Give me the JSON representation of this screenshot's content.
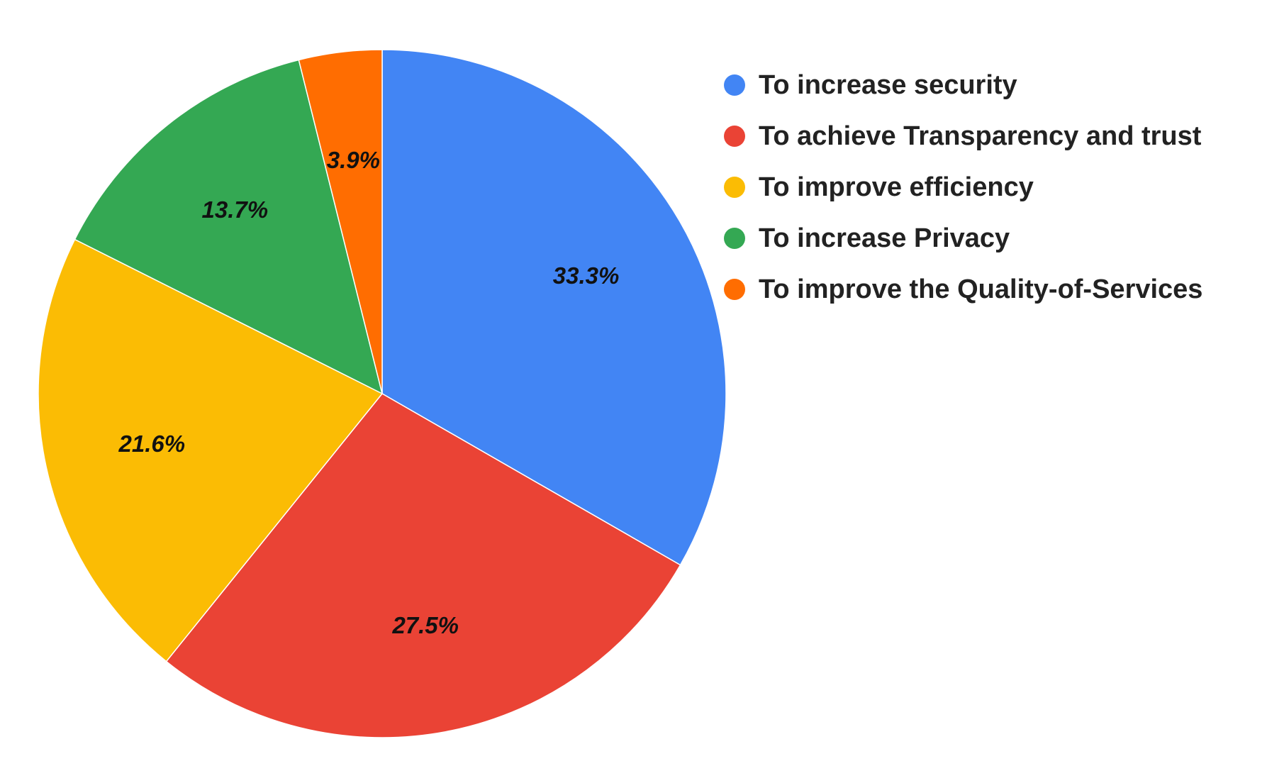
{
  "chart_data": {
    "type": "pie",
    "title": "",
    "categories": [
      "To increase security",
      "To achieve Transparency and trust",
      "To improve efficiency",
      "To increase Privacy",
      "To improve the Quality-of-Services"
    ],
    "values": [
      33.3,
      27.5,
      21.6,
      13.7,
      3.9
    ],
    "data_labels": [
      "33.3%",
      "27.5%",
      "21.6%",
      "13.7%",
      "3.9%"
    ],
    "colors": [
      "#4285F4",
      "#EA4335",
      "#FBBC04",
      "#34A853",
      "#FF6D01"
    ],
    "start_angle": "12 o'clock",
    "direction": "clockwise",
    "legend": {
      "position": "right",
      "entries": [
        "To increase security",
        "To achieve Transparency and trust",
        "To improve efficiency",
        "To increase Privacy",
        "To improve the Quality-of-Services"
      ]
    }
  }
}
